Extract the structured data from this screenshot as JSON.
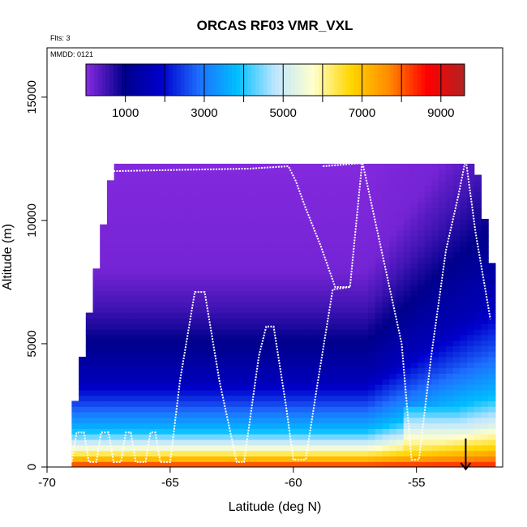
{
  "chart_data": {
    "type": "heatmap",
    "title": "ORCAS RF03 VMR_VXL",
    "xlabel": "Latitude (deg N)",
    "ylabel": "Altitude (m)",
    "xlim": [
      -70,
      -51.5
    ],
    "ylim": [
      0,
      17000
    ],
    "x_ticks": [
      -70,
      -65,
      -60,
      -55
    ],
    "x_tick_labels": [
      "-70",
      "-65",
      "-60",
      "-55"
    ],
    "y_ticks": [
      0,
      5000,
      10000,
      15000
    ],
    "y_tick_labels": [
      "0",
      "5000",
      "10000",
      "15000"
    ],
    "flights_label": "Flts: 3",
    "mmdd_label": "MMDD: 0121",
    "colorbar": {
      "range": [
        0,
        9600
      ],
      "ticks": [
        1000,
        3000,
        5000,
        7000,
        9000
      ],
      "tick_labels": [
        "1000",
        "3000",
        "5000",
        "7000",
        "9000"
      ],
      "colors": [
        "#8a2be2",
        "#00008b",
        "#0000cd",
        "#1e6fff",
        "#00bfff",
        "#bfe6ff",
        "#ffffcc",
        "#ffd700",
        "#ff8c00",
        "#ff0000",
        "#b22222"
      ]
    },
    "field_extent": {
      "lat_min": -69,
      "lat_max": -51.8,
      "alt_min": 0,
      "alt_max": 12300
    },
    "vmr_profile_by_altitude_m": [
      {
        "alt": 0,
        "vmr": 8500
      },
      {
        "alt": 400,
        "vmr": 6800
      },
      {
        "alt": 900,
        "vmr": 5200
      },
      {
        "alt": 1500,
        "vmr": 3800
      },
      {
        "alt": 2500,
        "vmr": 2600
      },
      {
        "alt": 3500,
        "vmr": 1600
      },
      {
        "alt": 5000,
        "vmr": 1000
      },
      {
        "alt": 6500,
        "vmr": 500
      },
      {
        "alt": 8000,
        "vmr": 150
      },
      {
        "alt": 12300,
        "vmr": 50
      }
    ],
    "flight_track": [
      [
        -69.0,
        200
      ],
      [
        -68.8,
        1400
      ],
      [
        -68.5,
        1400
      ],
      [
        -68.3,
        200
      ],
      [
        -68.0,
        200
      ],
      [
        -67.8,
        1400
      ],
      [
        -67.5,
        1400
      ],
      [
        -67.3,
        200
      ],
      [
        -67.0,
        200
      ],
      [
        -66.8,
        1400
      ],
      [
        -66.6,
        1400
      ],
      [
        -66.4,
        200
      ],
      [
        -66.0,
        200
      ],
      [
        -65.8,
        1400
      ],
      [
        -65.6,
        1400
      ],
      [
        -65.4,
        200
      ],
      [
        -65.0,
        200
      ],
      [
        -64.6,
        3500
      ],
      [
        -64.0,
        7100
      ],
      [
        -63.6,
        7100
      ],
      [
        -63.0,
        3500
      ],
      [
        -62.3,
        200
      ],
      [
        -62.0,
        200
      ],
      [
        -61.4,
        4500
      ],
      [
        -61.1,
        5700
      ],
      [
        -60.8,
        5700
      ],
      [
        -60.3,
        2500
      ],
      [
        -60.0,
        300
      ],
      [
        -59.5,
        300
      ],
      [
        -59.0,
        3500
      ],
      [
        -58.4,
        7200
      ],
      [
        -57.7,
        7300
      ],
      [
        -57.2,
        12400
      ],
      [
        -55.6,
        5000
      ],
      [
        -55.2,
        300
      ],
      [
        -54.9,
        300
      ],
      [
        -54.4,
        4500
      ],
      [
        -53.8,
        8800
      ],
      [
        -53.3,
        11000
      ],
      [
        -53.0,
        12500
      ],
      [
        -52.6,
        9500
      ],
      [
        -52.0,
        6000
      ]
    ],
    "flight_track_upper": [
      [
        -67.3,
        12000
      ],
      [
        -64.6,
        12050
      ],
      [
        -61.8,
        12100
      ],
      [
        -60.2,
        12200
      ],
      [
        -59.9,
        11600
      ],
      [
        -59.5,
        10500
      ],
      [
        -58.9,
        9000
      ],
      [
        -58.3,
        7300
      ],
      [
        -57.7,
        7300
      ]
    ],
    "flight_track_upper2": [
      [
        -58.8,
        12200
      ],
      [
        -57.5,
        12300
      ],
      [
        -53.0,
        12600
      ]
    ],
    "marker": {
      "lat": -53.0,
      "alt": 500,
      "symbol": "arrow-down"
    }
  }
}
